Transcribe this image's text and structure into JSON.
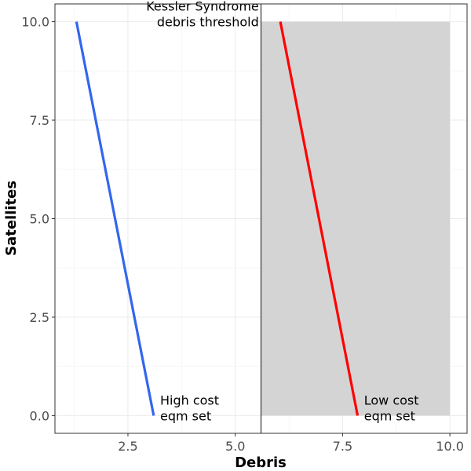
{
  "chart_data": {
    "type": "line",
    "title": "",
    "xlabel": "Debris",
    "ylabel": "Satellites",
    "xlim": [
      0.8,
      10.4
    ],
    "ylim": [
      -0.45,
      10.45
    ],
    "x_ticks": [
      2.5,
      5.0,
      7.5,
      10.0
    ],
    "x_tick_labels": [
      "2.5",
      "5.0",
      "7.5",
      "10.0"
    ],
    "y_ticks": [
      0.0,
      2.5,
      5.0,
      7.5,
      10.0
    ],
    "y_tick_labels": [
      "0.0",
      "2.5",
      "5.0",
      "7.5",
      "10.0"
    ],
    "grid": true,
    "series": [
      {
        "name": "High cost eqm set",
        "color": "#3366ee",
        "x": [
          1.3,
          3.1
        ],
        "y": [
          10.0,
          0.0
        ]
      },
      {
        "name": "Low cost eqm set",
        "color": "#ff0000",
        "x": [
          6.05,
          7.85
        ],
        "y": [
          10.0,
          0.0
        ]
      }
    ],
    "threshold": {
      "x": 5.6,
      "color": "#333333"
    },
    "shaded_region": {
      "x": [
        5.6,
        10.0
      ],
      "y": [
        0.0,
        10.0
      ],
      "color": "#d4d4d4"
    },
    "annotations": [
      {
        "lines": [
          "Kessler Syndrome",
          "debris threshold"
        ],
        "x": 5.55,
        "y": 10.0,
        "anchor": "end"
      },
      {
        "lines": [
          "High cost",
          "eqm set"
        ],
        "x": 3.25,
        "y": 0.0,
        "anchor": "start"
      },
      {
        "lines": [
          "Low cost",
          "eqm set"
        ],
        "x": 8.0,
        "y": 0.0,
        "anchor": "start"
      }
    ]
  }
}
